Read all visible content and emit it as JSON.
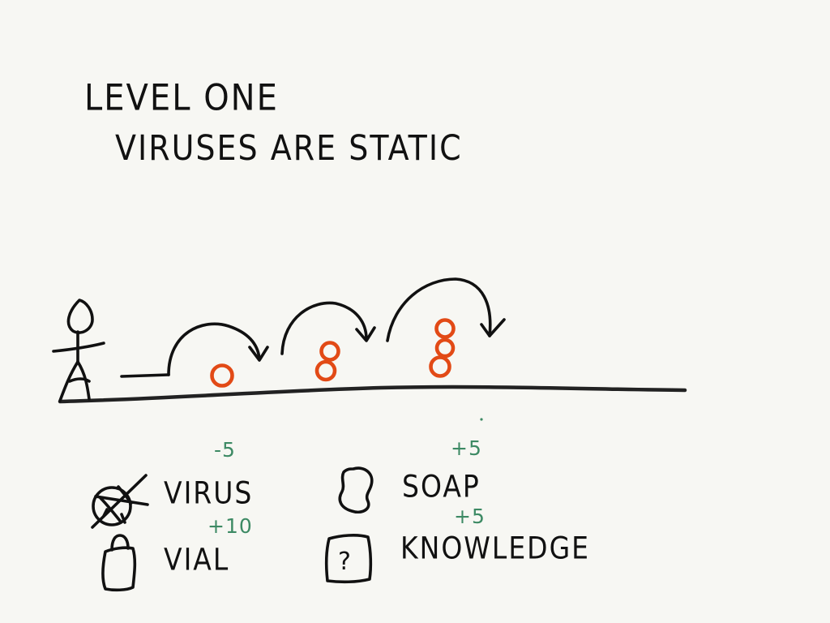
{
  "header": {
    "title": "LEVEL ONE",
    "subtitle": "VIRUSES ARE STATIC"
  },
  "legend": {
    "items": [
      {
        "key": "virus",
        "label": "VIRUS",
        "score": "-5",
        "icon": "crossed-virus-icon"
      },
      {
        "key": "soap",
        "label": "SOAP",
        "score": "+5",
        "icon": "soap-icon"
      },
      {
        "key": "vial",
        "label": "VIAL",
        "score": "+10",
        "icon": "vial-icon"
      },
      {
        "key": "knowledge",
        "label": "KNOWLEDGE",
        "score": "+5",
        "icon": "question-box-icon"
      }
    ],
    "knowledge_symbol": "?"
  },
  "scene": {
    "virus_groups": [
      1,
      2,
      3
    ]
  },
  "colors": {
    "background": "#f7f7f3",
    "ink": "#111111",
    "virus": "#e24a16",
    "score": "#3d8a64"
  }
}
